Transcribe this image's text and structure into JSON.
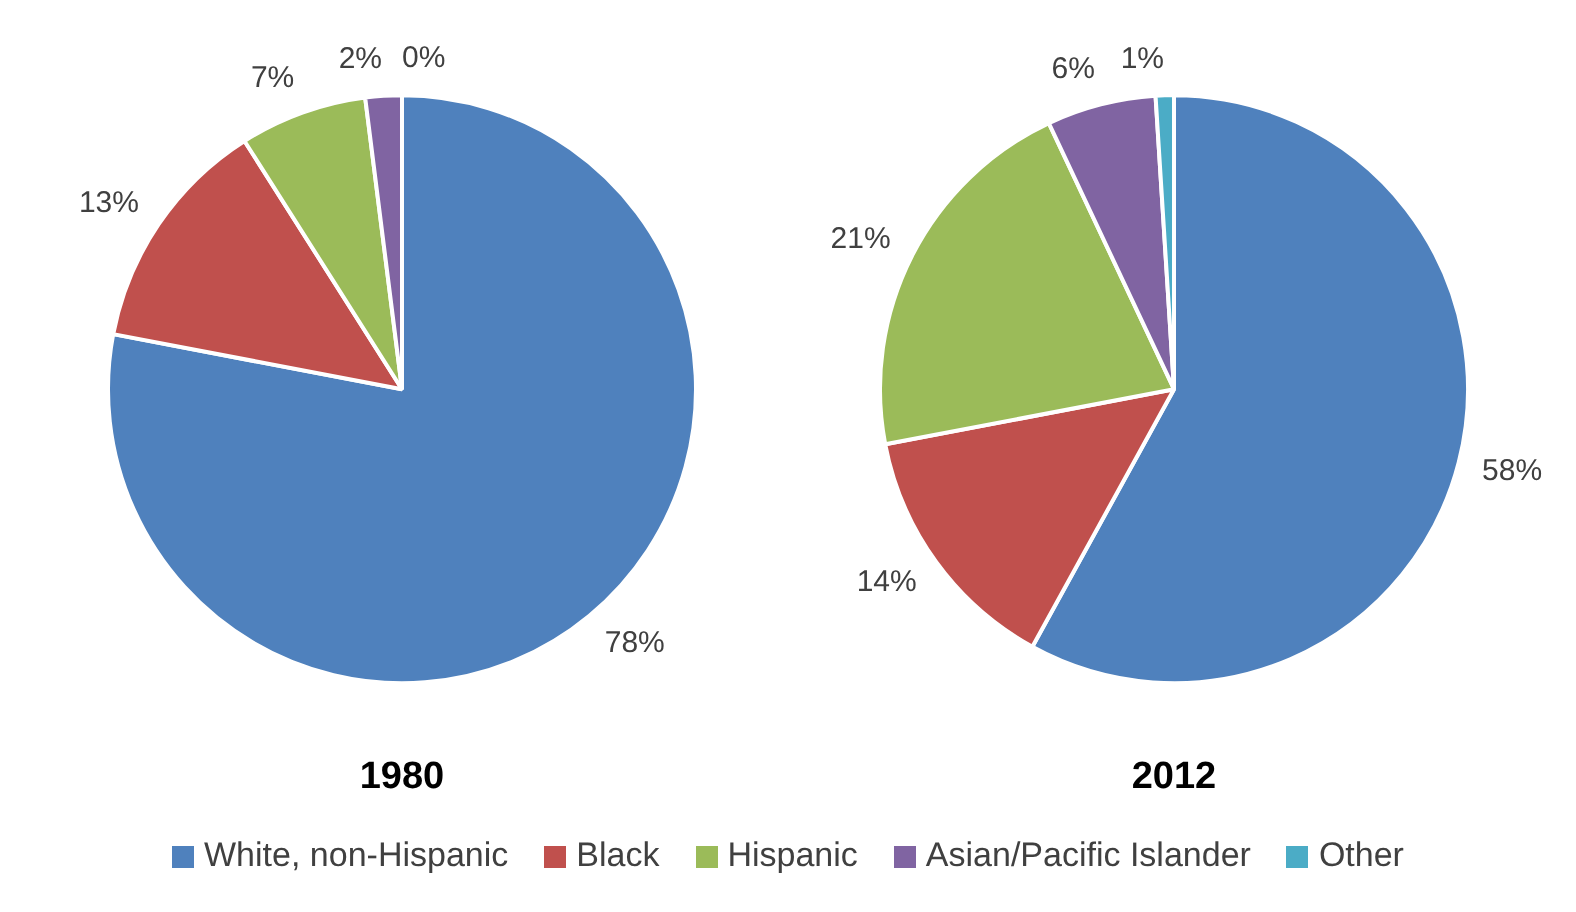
{
  "chart_data": [
    {
      "type": "pie",
      "title": "1980",
      "categories": [
        "White, non-Hispanic",
        "Black",
        "Hispanic",
        "Asian/Pacific Islander",
        "Other"
      ],
      "values": [
        78,
        13,
        7,
        2,
        0
      ],
      "value_labels": [
        "78%",
        "13%",
        "7%",
        "2%",
        "0%"
      ],
      "colors": [
        "#4f81bd",
        "#c0504d",
        "#9bbb59",
        "#8064a2",
        "#4bacc6"
      ],
      "legend": "bottom"
    },
    {
      "type": "pie",
      "title": "2012",
      "categories": [
        null,
        null,
        null,
        null,
        null
      ],
      "values": [
        58,
        14,
        21,
        6,
        1
      ],
      "value_labels": [
        "58%",
        "14%",
        "21%",
        "6%",
        "1%"
      ],
      "colors": [
        "#4f81bd",
        "#c0504d",
        "#9bbb59",
        "#8064a2",
        "#4bacc6"
      ]
    }
  ]
}
